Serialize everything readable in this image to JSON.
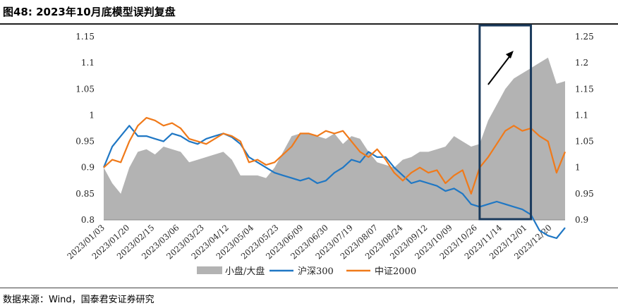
{
  "title": "图48:  2023年10月底模型误判复盘",
  "source": "数据来源：Wind，国泰君安证券研究",
  "colors": {
    "area": "#b3b3b3",
    "hs300": "#1f77c4",
    "zz2000": "#f07a1a",
    "box": "#1a3a5c",
    "arrow": "#000000"
  },
  "chart_data": {
    "type": "line",
    "title": "",
    "xlabel": "",
    "ylabel": "",
    "left_axis": {
      "ylim": [
        0.8,
        1.15
      ],
      "ticks": [
        "0.8",
        "0.85",
        "0.9",
        "0.95",
        "1",
        "1.05",
        "1.1",
        "1.15"
      ]
    },
    "right_axis": {
      "ylim": [
        0.9,
        1.25
      ],
      "ticks": [
        "0.9",
        "0.95",
        "1",
        "1.05",
        "1.1",
        "1.15",
        "1.2",
        "1.25"
      ]
    },
    "x_tick_labels": [
      "2023/01/03",
      "2023/01/20",
      "2023/02/15",
      "2023/03/06",
      "2023/03/23",
      "2023/04/12",
      "2023/05/04",
      "2023/05/23",
      "2023/06/09",
      "2023/06/30",
      "2023/07/19",
      "2023/08/07",
      "2023/08/24",
      "2023/09/12",
      "2023/10/09",
      "2023/10/26",
      "2023/11/14",
      "2023/12/01",
      "2023/12/20"
    ],
    "x": [
      "2023/01/03",
      "2023/01/10",
      "2023/01/20",
      "2023/02/01",
      "2023/02/08",
      "2023/02/15",
      "2023/02/22",
      "2023/03/01",
      "2023/03/06",
      "2023/03/13",
      "2023/03/20",
      "2023/03/23",
      "2023/03/30",
      "2023/04/06",
      "2023/04/12",
      "2023/04/19",
      "2023/04/26",
      "2023/05/04",
      "2023/05/11",
      "2023/05/18",
      "2023/05/23",
      "2023/05/30",
      "2023/06/06",
      "2023/06/09",
      "2023/06/16",
      "2023/06/26",
      "2023/06/30",
      "2023/07/07",
      "2023/07/14",
      "2023/07/19",
      "2023/07/26",
      "2023/08/02",
      "2023/08/07",
      "2023/08/14",
      "2023/08/21",
      "2023/08/24",
      "2023/08/31",
      "2023/09/07",
      "2023/09/12",
      "2023/09/19",
      "2023/09/26",
      "2023/10/09",
      "2023/10/16",
      "2023/10/23",
      "2023/10/26",
      "2023/11/02",
      "2023/11/09",
      "2023/11/14",
      "2023/11/21",
      "2023/11/28",
      "2023/12/01",
      "2023/12/08",
      "2023/12/15",
      "2023/12/20",
      "2023/12/29"
    ],
    "series": [
      {
        "name": "小盘/大盘",
        "kind": "area",
        "axis": "left",
        "values": [
          0.9,
          0.87,
          0.85,
          0.9,
          0.93,
          0.935,
          0.925,
          0.94,
          0.935,
          0.93,
          0.91,
          0.915,
          0.92,
          0.925,
          0.93,
          0.915,
          0.885,
          0.885,
          0.885,
          0.88,
          0.9,
          0.93,
          0.96,
          0.965,
          0.965,
          0.96,
          0.955,
          0.965,
          0.945,
          0.96,
          0.955,
          0.93,
          0.91,
          0.905,
          0.9,
          0.915,
          0.92,
          0.93,
          0.93,
          0.935,
          0.94,
          0.96,
          0.95,
          0.94,
          0.945,
          0.99,
          1.02,
          1.05,
          1.07,
          1.08,
          1.09,
          1.1,
          1.11,
          1.06,
          1.065
        ]
      },
      {
        "name": "沪深300",
        "kind": "line",
        "axis": "right",
        "values": [
          1.0,
          1.04,
          1.06,
          1.08,
          1.06,
          1.06,
          1.055,
          1.05,
          1.065,
          1.06,
          1.05,
          1.045,
          1.055,
          1.06,
          1.065,
          1.058,
          1.045,
          1.02,
          1.01,
          1.0,
          0.99,
          0.985,
          0.98,
          0.975,
          0.98,
          0.97,
          0.975,
          0.99,
          1.0,
          1.015,
          1.01,
          1.03,
          1.02,
          1.02,
          1.0,
          0.985,
          0.97,
          0.975,
          0.97,
          0.965,
          0.955,
          0.96,
          0.95,
          0.93,
          0.925,
          0.93,
          0.935,
          0.93,
          0.925,
          0.92,
          0.91,
          0.88,
          0.87,
          0.865,
          0.885
        ]
      },
      {
        "name": "中证2000",
        "kind": "line",
        "axis": "right",
        "values": [
          1.0,
          1.015,
          1.01,
          1.05,
          1.08,
          1.095,
          1.09,
          1.08,
          1.085,
          1.075,
          1.055,
          1.05,
          1.045,
          1.055,
          1.065,
          1.06,
          1.05,
          1.01,
          1.015,
          1.005,
          1.01,
          1.025,
          1.04,
          1.065,
          1.065,
          1.06,
          1.07,
          1.065,
          1.07,
          1.05,
          1.03,
          1.02,
          1.035,
          1.015,
          0.99,
          0.975,
          0.99,
          1.0,
          0.99,
          0.995,
          0.97,
          0.985,
          0.995,
          0.95,
          1.0,
          1.02,
          1.045,
          1.07,
          1.08,
          1.07,
          1.075,
          1.06,
          1.05,
          0.99,
          1.03
        ]
      }
    ],
    "highlight_box": {
      "from": "2023/10/26",
      "to": "2023/12/01"
    },
    "annotation": "up-arrow",
    "legend": {
      "position": "bottom"
    }
  }
}
